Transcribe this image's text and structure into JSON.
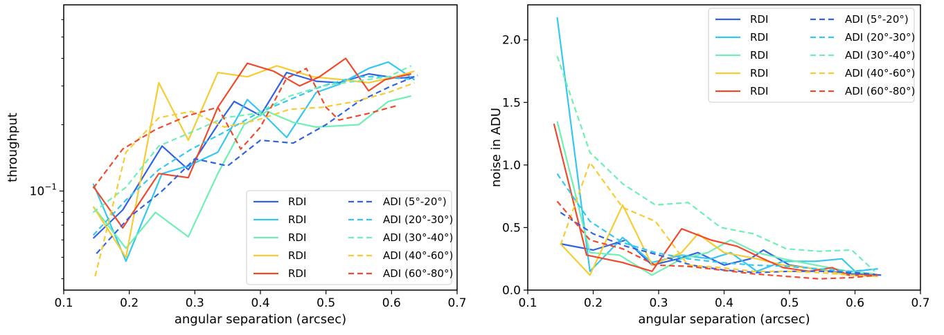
{
  "colors": {
    "blue": "#2f63e4",
    "cyan": "#34c8f0",
    "green": "#6ef0b4",
    "yellow": "#f6cb33",
    "red": "#ef4a2b"
  },
  "chart_data": [
    {
      "type": "line",
      "xlabel": "angular separation (arcsec)",
      "ylabel": "throughput",
      "xlim": [
        0.1,
        0.7
      ],
      "ylim": [
        0.0355,
        0.7
      ],
      "yscale": "log",
      "xticks": [
        "0.1",
        "0.2",
        "0.3",
        "0.4",
        "0.5",
        "0.6",
        "0.7"
      ],
      "yticks": [
        {
          "value": 0.1,
          "base": "10",
          "exp": "−1"
        }
      ],
      "legend": "lower-right",
      "series": [
        {
          "name": "RDI",
          "color": "blue",
          "style": "solid",
          "x": [
            0.145,
            0.19,
            0.25,
            0.29,
            0.335,
            0.36,
            0.4,
            0.44,
            0.485,
            0.52,
            0.565,
            0.61,
            0.635
          ],
          "y": [
            0.061,
            0.082,
            0.16,
            0.125,
            0.2,
            0.255,
            0.22,
            0.345,
            0.315,
            0.31,
            0.34,
            0.325,
            0.33
          ]
        },
        {
          "name": "RDI",
          "color": "cyan",
          "style": "solid",
          "x": [
            0.145,
            0.195,
            0.25,
            0.29,
            0.335,
            0.38,
            0.41,
            0.44,
            0.485,
            0.52,
            0.565,
            0.595,
            0.635
          ],
          "y": [
            0.108,
            0.048,
            0.12,
            0.13,
            0.15,
            0.26,
            0.215,
            0.175,
            0.28,
            0.305,
            0.36,
            0.385,
            0.32
          ]
        },
        {
          "name": "RDI",
          "color": "green",
          "style": "solid",
          "x": [
            0.145,
            0.195,
            0.24,
            0.29,
            0.335,
            0.375,
            0.41,
            0.45,
            0.485,
            0.55,
            0.595,
            0.63
          ],
          "y": [
            0.085,
            0.055,
            0.08,
            0.062,
            0.12,
            0.2,
            0.23,
            0.205,
            0.195,
            0.2,
            0.255,
            0.27
          ]
        },
        {
          "name": "RDI",
          "color": "yellow",
          "style": "solid",
          "x": [
            0.145,
            0.195,
            0.245,
            0.29,
            0.335,
            0.38,
            0.425,
            0.48,
            0.525,
            0.565,
            0.605,
            0.635
          ],
          "y": [
            0.085,
            0.05,
            0.31,
            0.17,
            0.345,
            0.33,
            0.37,
            0.33,
            0.32,
            0.31,
            0.33,
            0.35
          ]
        },
        {
          "name": "RDI",
          "color": "red",
          "style": "solid",
          "x": [
            0.145,
            0.19,
            0.245,
            0.29,
            0.335,
            0.38,
            0.42,
            0.46,
            0.49,
            0.53,
            0.565,
            0.59,
            0.63
          ],
          "y": [
            0.105,
            0.068,
            0.12,
            0.115,
            0.24,
            0.38,
            0.35,
            0.3,
            0.33,
            0.4,
            0.285,
            0.32,
            0.34
          ]
        },
        {
          "name": "ADI (5°-20°)",
          "color": "blue",
          "style": "dashed",
          "x": [
            0.15,
            0.2,
            0.25,
            0.3,
            0.35,
            0.4,
            0.45,
            0.5,
            0.55,
            0.6,
            0.64
          ],
          "y": [
            0.052,
            0.076,
            0.1,
            0.14,
            0.13,
            0.17,
            0.165,
            0.2,
            0.255,
            0.3,
            0.335
          ]
        },
        {
          "name": "ADI (20°-30°)",
          "color": "cyan",
          "style": "dashed",
          "x": [
            0.145,
            0.195,
            0.245,
            0.295,
            0.345,
            0.395,
            0.445,
            0.495,
            0.545,
            0.595,
            0.635
          ],
          "y": [
            0.063,
            0.091,
            0.125,
            0.155,
            0.185,
            0.225,
            0.26,
            0.3,
            0.33,
            0.33,
            0.32
          ]
        },
        {
          "name": "ADI (30°-40°)",
          "color": "green",
          "style": "dashed",
          "x": [
            0.145,
            0.195,
            0.245,
            0.295,
            0.345,
            0.395,
            0.445,
            0.495,
            0.545,
            0.595,
            0.63
          ],
          "y": [
            0.08,
            0.104,
            0.16,
            0.185,
            0.215,
            0.225,
            0.27,
            0.3,
            0.315,
            0.33,
            0.37
          ]
        },
        {
          "name": "ADI (40°-60°)",
          "color": "yellow",
          "style": "dashed",
          "x": [
            0.148,
            0.195,
            0.245,
            0.295,
            0.345,
            0.395,
            0.445,
            0.495,
            0.545,
            0.595,
            0.635
          ],
          "y": [
            0.041,
            0.15,
            0.215,
            0.23,
            0.195,
            0.21,
            0.235,
            0.24,
            0.255,
            0.28,
            0.31
          ]
        },
        {
          "name": "ADI (60°-80°)",
          "color": "red",
          "style": "dashed",
          "x": [
            0.145,
            0.19,
            0.24,
            0.29,
            0.335,
            0.37,
            0.4,
            0.44,
            0.47,
            0.5,
            0.52,
            0.565,
            0.61
          ],
          "y": [
            0.103,
            0.155,
            0.19,
            0.22,
            0.24,
            0.155,
            0.195,
            0.325,
            0.36,
            0.24,
            0.21,
            0.225,
            0.245
          ]
        }
      ]
    },
    {
      "type": "line",
      "xlabel": "angular separation (arcsec)",
      "ylabel": "noise in ADU",
      "xlim": [
        0.1,
        0.7
      ],
      "ylim": [
        0.0,
        2.28
      ],
      "yscale": "linear",
      "xticks": [
        "0.1",
        "0.2",
        "0.3",
        "0.4",
        "0.5",
        "0.6",
        "0.7"
      ],
      "yticks": [
        "0.0",
        "0.5",
        "1.0",
        "1.5",
        "2.0"
      ],
      "legend": "top-right",
      "series": [
        {
          "name": "RDI",
          "color": "blue",
          "style": "solid",
          "x": [
            0.15,
            0.2,
            0.25,
            0.29,
            0.33,
            0.36,
            0.4,
            0.44,
            0.46,
            0.5,
            0.55,
            0.59,
            0.64
          ],
          "y": [
            0.37,
            0.32,
            0.4,
            0.2,
            0.25,
            0.3,
            0.2,
            0.25,
            0.32,
            0.2,
            0.16,
            0.13,
            0.12
          ]
        },
        {
          "name": "RDI",
          "color": "cyan",
          "style": "solid",
          "x": [
            0.145,
            0.195,
            0.245,
            0.29,
            0.335,
            0.38,
            0.41,
            0.45,
            0.49,
            0.54,
            0.58,
            0.6,
            0.635
          ],
          "y": [
            2.18,
            0.15,
            0.42,
            0.22,
            0.28,
            0.25,
            0.3,
            0.15,
            0.23,
            0.23,
            0.25,
            0.15,
            0.17
          ]
        },
        {
          "name": "RDI",
          "color": "green",
          "style": "solid",
          "x": [
            0.145,
            0.195,
            0.24,
            0.29,
            0.335,
            0.375,
            0.41,
            0.45,
            0.49,
            0.54,
            0.59,
            0.63
          ],
          "y": [
            1.35,
            0.3,
            0.28,
            0.12,
            0.25,
            0.3,
            0.4,
            0.3,
            0.25,
            0.2,
            0.15,
            0.13
          ]
        },
        {
          "name": "RDI",
          "color": "yellow",
          "style": "solid",
          "x": [
            0.15,
            0.195,
            0.245,
            0.29,
            0.335,
            0.36,
            0.4,
            0.45,
            0.49,
            0.54,
            0.59,
            0.635
          ],
          "y": [
            0.37,
            0.12,
            0.68,
            0.2,
            0.3,
            0.45,
            0.3,
            0.25,
            0.2,
            0.17,
            0.12,
            0.11
          ]
        },
        {
          "name": "RDI",
          "color": "red",
          "style": "solid",
          "x": [
            0.14,
            0.19,
            0.245,
            0.29,
            0.335,
            0.38,
            0.42,
            0.46,
            0.49,
            0.53,
            0.565,
            0.59,
            0.63
          ],
          "y": [
            1.33,
            0.28,
            0.22,
            0.15,
            0.49,
            0.4,
            0.35,
            0.25,
            0.18,
            0.15,
            0.18,
            0.12,
            0.12
          ]
        },
        {
          "name": "ADI (5°-20°)",
          "color": "blue",
          "style": "dashed",
          "x": [
            0.15,
            0.2,
            0.25,
            0.3,
            0.35,
            0.4,
            0.45,
            0.5,
            0.55,
            0.6,
            0.64
          ],
          "y": [
            0.62,
            0.45,
            0.35,
            0.28,
            0.2,
            0.16,
            0.14,
            0.15,
            0.15,
            0.14,
            0.12
          ]
        },
        {
          "name": "ADI (20°-30°)",
          "color": "cyan",
          "style": "dashed",
          "x": [
            0.145,
            0.195,
            0.245,
            0.295,
            0.345,
            0.395,
            0.445,
            0.495,
            0.545,
            0.595,
            0.635
          ],
          "y": [
            0.93,
            0.55,
            0.38,
            0.3,
            0.25,
            0.22,
            0.2,
            0.19,
            0.17,
            0.15,
            0.17
          ]
        },
        {
          "name": "ADI (30°-40°)",
          "color": "green",
          "style": "dashed",
          "x": [
            0.145,
            0.195,
            0.245,
            0.295,
            0.345,
            0.395,
            0.445,
            0.495,
            0.545,
            0.595,
            0.63
          ],
          "y": [
            1.87,
            1.1,
            0.85,
            0.68,
            0.7,
            0.5,
            0.45,
            0.33,
            0.31,
            0.32,
            0.15
          ]
        },
        {
          "name": "ADI (40°-60°)",
          "color": "yellow",
          "style": "dashed",
          "x": [
            0.15,
            0.195,
            0.245,
            0.295,
            0.345,
            0.395,
            0.445,
            0.495,
            0.545,
            0.595,
            0.635
          ],
          "y": [
            0.36,
            1.02,
            0.66,
            0.55,
            0.2,
            0.18,
            0.15,
            0.15,
            0.14,
            0.12,
            0.11
          ]
        },
        {
          "name": "ADI (60°-80°)",
          "color": "red",
          "style": "dashed",
          "x": [
            0.145,
            0.195,
            0.245,
            0.295,
            0.345,
            0.395,
            0.445,
            0.495,
            0.545,
            0.595,
            0.635
          ],
          "y": [
            0.71,
            0.4,
            0.33,
            0.2,
            0.19,
            0.16,
            0.13,
            0.11,
            0.09,
            0.1,
            0.12
          ]
        }
      ]
    }
  ]
}
